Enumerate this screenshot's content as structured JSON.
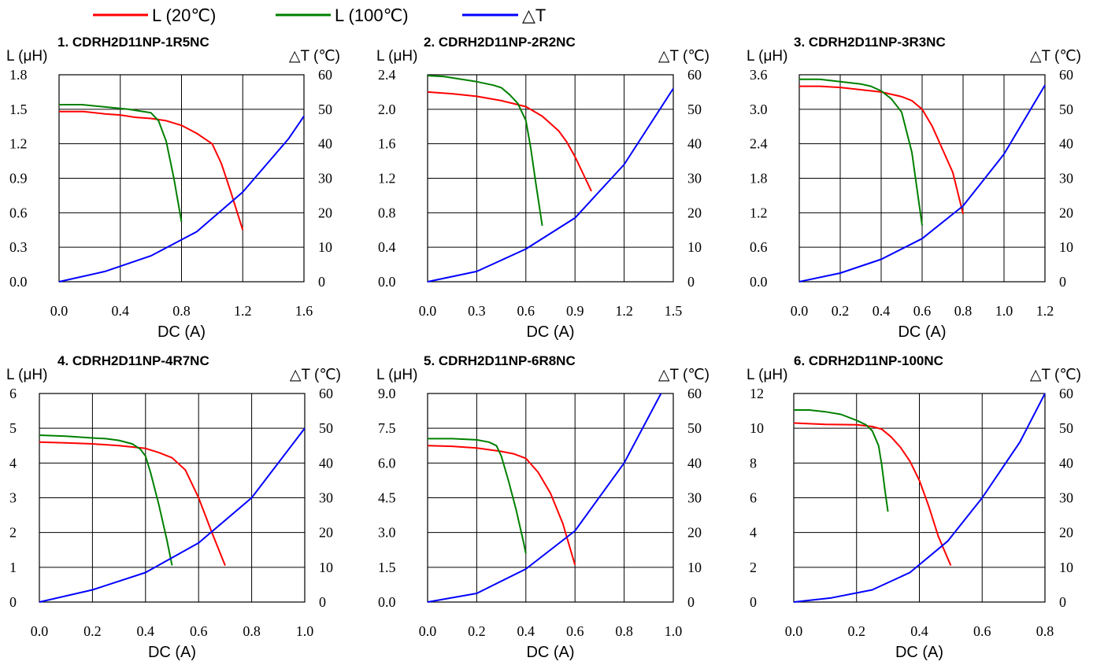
{
  "legend": {
    "items": [
      {
        "label": "L (20℃)",
        "color": "#ff0000"
      },
      {
        "label": "L (100℃)",
        "color": "#008000"
      },
      {
        "label": "△T",
        "color": "#0000ff"
      }
    ],
    "placement": "top-left"
  },
  "colors": {
    "l20": "#ff0000",
    "l100": "#008000",
    "dt": "#0000ff",
    "grid": "#000000"
  },
  "chart_data": [
    {
      "type": "line",
      "title": "1. CDRH2D11NP-1R5NC",
      "xlabel": "DC (A)",
      "ylabel": "L (μH)",
      "y2label": "△T (℃)",
      "xlim": [
        0,
        1.6
      ],
      "ylim": [
        0,
        1.8
      ],
      "y2lim": [
        0,
        60
      ],
      "xticks": [
        "0.0",
        "0.4",
        "0.8",
        "1.2",
        "1.6"
      ],
      "yticks": [
        "0.0",
        "0.3",
        "0.6",
        "0.9",
        "1.2",
        "1.5",
        "1.8"
      ],
      "y2ticks": [
        "0",
        "10",
        "20",
        "30",
        "40",
        "50",
        "60"
      ],
      "grid": true,
      "series": [
        {
          "name": "L (20℃)",
          "axis": "left",
          "color": "#ff0000",
          "x": [
            0,
            0.16,
            0.3,
            0.4,
            0.5,
            0.6,
            0.7,
            0.8,
            0.9,
            1.0,
            1.06,
            1.12,
            1.2
          ],
          "y": [
            1.48,
            1.48,
            1.46,
            1.45,
            1.43,
            1.42,
            1.4,
            1.36,
            1.29,
            1.2,
            1.03,
            0.79,
            0.45
          ]
        },
        {
          "name": "L (100℃)",
          "axis": "left",
          "color": "#008000",
          "x": [
            0,
            0.15,
            0.3,
            0.45,
            0.55,
            0.6,
            0.65,
            0.7,
            0.75,
            0.8
          ],
          "y": [
            1.54,
            1.54,
            1.52,
            1.5,
            1.48,
            1.47,
            1.4,
            1.22,
            0.9,
            0.52
          ]
        },
        {
          "name": "△T",
          "axis": "right",
          "color": "#0000ff",
          "x": [
            0,
            0.3,
            0.6,
            0.9,
            1.2,
            1.5,
            1.6
          ],
          "y": [
            0,
            3,
            7.5,
            14.5,
            26,
            41.5,
            48
          ]
        }
      ]
    },
    {
      "type": "line",
      "title": "2. CDRH2D11NP-2R2NC",
      "xlabel": "DC (A)",
      "ylabel": "L (μH)",
      "y2label": "△T (℃)",
      "xlim": [
        0,
        1.5
      ],
      "ylim": [
        0,
        2.4
      ],
      "y2lim": [
        0,
        60
      ],
      "xticks": [
        "0.0",
        "0.3",
        "0.6",
        "0.9",
        "1.2",
        "1.5"
      ],
      "yticks": [
        "0.0",
        "0.4",
        "0.8",
        "1.2",
        "1.6",
        "2.0",
        "2.4"
      ],
      "y2ticks": [
        "0",
        "10",
        "20",
        "30",
        "40",
        "50",
        "60"
      ],
      "grid": true,
      "series": [
        {
          "name": "L (20℃)",
          "axis": "left",
          "color": "#ff0000",
          "x": [
            0,
            0.15,
            0.3,
            0.45,
            0.6,
            0.7,
            0.8,
            0.85,
            0.9,
            0.95,
            1.0
          ],
          "y": [
            2.2,
            2.18,
            2.15,
            2.1,
            2.03,
            1.92,
            1.75,
            1.62,
            1.45,
            1.25,
            1.05
          ]
        },
        {
          "name": "L (100℃)",
          "axis": "left",
          "color": "#008000",
          "x": [
            0,
            0.1,
            0.2,
            0.3,
            0.4,
            0.45,
            0.5,
            0.55,
            0.6,
            0.63,
            0.66,
            0.7
          ],
          "y": [
            2.39,
            2.38,
            2.35,
            2.32,
            2.28,
            2.25,
            2.17,
            2.07,
            1.87,
            1.55,
            1.15,
            0.65
          ]
        },
        {
          "name": "△T",
          "axis": "right",
          "color": "#0000ff",
          "x": [
            0,
            0.3,
            0.6,
            0.9,
            1.2,
            1.5
          ],
          "y": [
            0,
            3,
            9.5,
            18.5,
            34,
            56
          ]
        }
      ]
    },
    {
      "type": "line",
      "title": "3. CDRH2D11NP-3R3NC",
      "xlabel": "DC (A)",
      "ylabel": "L (μH)",
      "y2label": "△T (℃)",
      "xlim": [
        0,
        1.2
      ],
      "ylim": [
        0,
        3.6
      ],
      "y2lim": [
        0,
        60
      ],
      "xticks": [
        "0.0",
        "0.2",
        "0.4",
        "0.6",
        "0.8",
        "1.0",
        "1.2"
      ],
      "yticks": [
        "0.0",
        "0.6",
        "1.2",
        "1.8",
        "2.4",
        "3.0",
        "3.6"
      ],
      "y2ticks": [
        "0",
        "10",
        "20",
        "30",
        "40",
        "50",
        "60"
      ],
      "grid": true,
      "series": [
        {
          "name": "L (20℃)",
          "axis": "left",
          "color": "#ff0000",
          "x": [
            0,
            0.1,
            0.2,
            0.3,
            0.4,
            0.5,
            0.55,
            0.6,
            0.65,
            0.7,
            0.75,
            0.8
          ],
          "y": [
            3.4,
            3.4,
            3.38,
            3.34,
            3.3,
            3.22,
            3.15,
            3.0,
            2.7,
            2.3,
            1.9,
            1.18
          ]
        },
        {
          "name": "L (100℃)",
          "axis": "left",
          "color": "#008000",
          "x": [
            0,
            0.1,
            0.2,
            0.3,
            0.35,
            0.4,
            0.45,
            0.5,
            0.55,
            0.6
          ],
          "y": [
            3.52,
            3.52,
            3.48,
            3.44,
            3.4,
            3.32,
            3.18,
            2.95,
            2.25,
            0.98
          ]
        },
        {
          "name": "△T",
          "axis": "right",
          "color": "#0000ff",
          "x": [
            0,
            0.2,
            0.4,
            0.6,
            0.8,
            1.0,
            1.2
          ],
          "y": [
            0,
            2.5,
            6.5,
            12.5,
            22,
            37,
            57
          ]
        }
      ]
    },
    {
      "type": "line",
      "title": "4. CDRH2D11NP-4R7NC",
      "xlabel": "DC (A)",
      "ylabel": "L (μH)",
      "y2label": "△T (℃)",
      "xlim": [
        0,
        1.0
      ],
      "ylim": [
        0,
        6
      ],
      "y2lim": [
        0,
        60
      ],
      "xticks": [
        "0.0",
        "0.2",
        "0.4",
        "0.6",
        "0.8",
        "1.0"
      ],
      "yticks": [
        "0",
        "1",
        "2",
        "3",
        "4",
        "5",
        "6"
      ],
      "y2ticks": [
        "0",
        "10",
        "20",
        "30",
        "40",
        "50",
        "60"
      ],
      "grid": true,
      "series": [
        {
          "name": "L (20℃)",
          "axis": "left",
          "color": "#ff0000",
          "x": [
            0,
            0.1,
            0.2,
            0.3,
            0.4,
            0.45,
            0.5,
            0.55,
            0.6,
            0.65,
            0.7
          ],
          "y": [
            4.6,
            4.58,
            4.55,
            4.5,
            4.42,
            4.3,
            4.15,
            3.8,
            3.0,
            2.0,
            1.05
          ]
        },
        {
          "name": "L (100℃)",
          "axis": "left",
          "color": "#008000",
          "x": [
            0,
            0.1,
            0.2,
            0.25,
            0.3,
            0.35,
            0.38,
            0.4,
            0.42,
            0.45,
            0.48,
            0.5
          ],
          "y": [
            4.8,
            4.77,
            4.72,
            4.7,
            4.65,
            4.55,
            4.4,
            4.2,
            3.7,
            2.8,
            1.8,
            1.05
          ]
        },
        {
          "name": "△T",
          "axis": "right",
          "color": "#0000ff",
          "x": [
            0,
            0.2,
            0.4,
            0.6,
            0.8,
            1.0
          ],
          "y": [
            0,
            3.5,
            8.5,
            17,
            30,
            50
          ]
        }
      ]
    },
    {
      "type": "line",
      "title": "5. CDRH2D11NP-6R8NC",
      "xlabel": "DC (A)",
      "ylabel": "L (μH)",
      "y2label": "△T (℃)",
      "xlim": [
        0,
        1.0
      ],
      "ylim": [
        0,
        9.0
      ],
      "y2lim": [
        0,
        60
      ],
      "xticks": [
        "0.0",
        "0.2",
        "0.4",
        "0.6",
        "0.8",
        "1.0"
      ],
      "yticks": [
        "0.0",
        "1.5",
        "3.0",
        "4.5",
        "6.0",
        "7.5",
        "9.0"
      ],
      "y2ticks": [
        "0",
        "10",
        "20",
        "30",
        "40",
        "50",
        "60"
      ],
      "grid": true,
      "series": [
        {
          "name": "L (20℃)",
          "axis": "left",
          "color": "#ff0000",
          "x": [
            0,
            0.1,
            0.2,
            0.3,
            0.35,
            0.4,
            0.45,
            0.5,
            0.55,
            0.6
          ],
          "y": [
            6.75,
            6.72,
            6.65,
            6.5,
            6.4,
            6.2,
            5.6,
            4.7,
            3.4,
            1.6
          ]
        },
        {
          "name": "L (100℃)",
          "axis": "left",
          "color": "#008000",
          "x": [
            0,
            0.1,
            0.2,
            0.25,
            0.28,
            0.3,
            0.33,
            0.36,
            0.39,
            0.4
          ],
          "y": [
            7.05,
            7.05,
            7.0,
            6.9,
            6.75,
            6.3,
            5.2,
            4.0,
            2.6,
            2.1
          ]
        },
        {
          "name": "△T",
          "axis": "right",
          "color": "#0000ff",
          "x": [
            0,
            0.2,
            0.4,
            0.6,
            0.8,
            0.95
          ],
          "y": [
            0,
            2.5,
            9.5,
            20.5,
            40,
            60
          ]
        }
      ]
    },
    {
      "type": "line",
      "title": "6. CDRH2D11NP-100NC",
      "xlabel": "DC (A)",
      "ylabel": "L (μH)",
      "y2label": "△T (℃)",
      "xlim": [
        0,
        0.8
      ],
      "ylim": [
        0,
        12
      ],
      "y2lim": [
        0,
        60
      ],
      "xticks": [
        "0.0",
        "0.2",
        "0.4",
        "0.6",
        "0.8"
      ],
      "yticks": [
        "0",
        "2",
        "4",
        "6",
        "8",
        "10",
        "12"
      ],
      "y2ticks": [
        "0",
        "10",
        "20",
        "30",
        "40",
        "50",
        "60"
      ],
      "grid": true,
      "series": [
        {
          "name": "L (20℃)",
          "axis": "left",
          "color": "#ff0000",
          "x": [
            0,
            0.1,
            0.2,
            0.25,
            0.28,
            0.31,
            0.34,
            0.37,
            0.4,
            0.43,
            0.46,
            0.5
          ],
          "y": [
            10.3,
            10.22,
            10.2,
            10.1,
            9.95,
            9.5,
            8.9,
            8.1,
            7.0,
            5.5,
            3.8,
            2.1
          ]
        },
        {
          "name": "L (100℃)",
          "axis": "left",
          "color": "#008000",
          "x": [
            0,
            0.05,
            0.1,
            0.15,
            0.2,
            0.23,
            0.25,
            0.27,
            0.28,
            0.29,
            0.3
          ],
          "y": [
            11.05,
            11.05,
            10.95,
            10.8,
            10.45,
            10.2,
            9.85,
            9.0,
            7.9,
            6.5,
            5.2
          ]
        },
        {
          "name": "△T",
          "axis": "right",
          "color": "#0000ff",
          "x": [
            0,
            0.12,
            0.25,
            0.37,
            0.49,
            0.6,
            0.72,
            0.8
          ],
          "y": [
            0,
            1.2,
            3.5,
            8.5,
            17.5,
            30,
            46,
            60
          ]
        }
      ]
    }
  ]
}
